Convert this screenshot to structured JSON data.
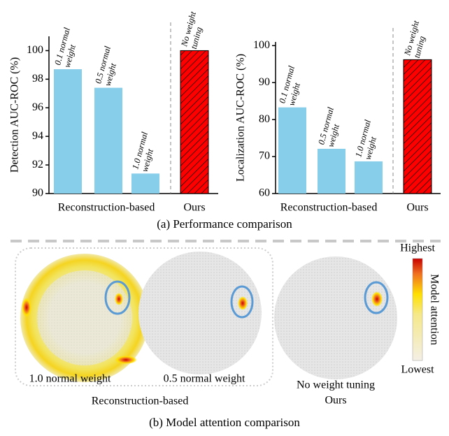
{
  "chart_data": [
    {
      "type": "bar",
      "ylabel": "Detection AUC-ROC (%)",
      "categories": [
        "0.1 normal weight",
        "0.5 normal weight",
        "1.0 normal weight",
        "No weight tuning"
      ],
      "values": [
        98.7,
        97.4,
        91.4,
        100
      ],
      "colors": [
        "#87ceeb",
        "#87ceeb",
        "#87ceeb",
        "#ff0000"
      ],
      "hatched": [
        false,
        false,
        false,
        true
      ],
      "group_labels": [
        "Reconstruction-based",
        "Ours"
      ],
      "ylim": [
        90,
        101
      ],
      "yticks": [
        90,
        92,
        94,
        96,
        98,
        100
      ]
    },
    {
      "type": "bar",
      "ylabel": "Localization AUC-ROC (%)",
      "categories": [
        "0.1 normal weight",
        "0.5 normal weight",
        "1.0 normal weight",
        "No weight tuning"
      ],
      "values": [
        83.3,
        72.1,
        68.7,
        96.2
      ],
      "colors": [
        "#87ceeb",
        "#87ceeb",
        "#87ceeb",
        "#ff0000"
      ],
      "hatched": [
        false,
        false,
        false,
        true
      ],
      "group_labels": [
        "Reconstruction-based",
        "Ours"
      ],
      "ylim": [
        60,
        101
      ],
      "yticks": [
        60,
        70,
        80,
        90,
        100
      ]
    }
  ],
  "caption_a": "(a) Performance comparison",
  "attention": {
    "panels": [
      "1.0 normal weight",
      "0.5 normal weight",
      "No weight tuning"
    ],
    "group_left": "Reconstruction-based",
    "group_right": "Ours",
    "colorbar": {
      "high": "Highest",
      "low": "Lowest",
      "label": "Model attention"
    },
    "caption": "(b) Model attention comparison"
  }
}
